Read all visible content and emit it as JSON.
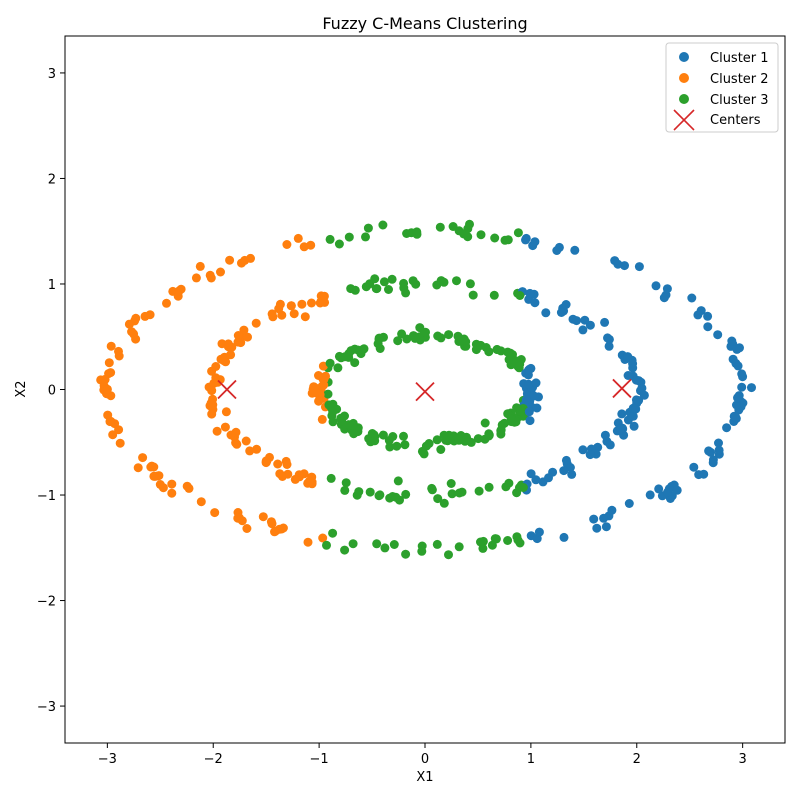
{
  "chart_data": {
    "type": "scatter",
    "title": "Fuzzy C-Means Clustering",
    "xlabel": "X1",
    "ylabel": "X2",
    "xlim": [
      -3.4,
      3.4
    ],
    "ylim": [
      -3.35,
      3.35
    ],
    "xticks": [
      -3,
      -2,
      -1,
      0,
      1,
      2,
      3
    ],
    "yticks": [
      -3,
      -2,
      -1,
      0,
      1,
      2,
      3
    ],
    "grid": false,
    "legend_position": "top-right",
    "legend": [
      "Cluster 1",
      "Cluster 2",
      "Cluster 3",
      "Centers"
    ],
    "rings": [
      {
        "a": 3.0,
        "b": 1.5,
        "label": "outer ellipse"
      },
      {
        "a": 2.0,
        "b": 1.0,
        "label": "middle ellipse"
      },
      {
        "a": 1.0,
        "b": 0.5,
        "label": "inner ellipse"
      }
    ],
    "series": [
      {
        "name": "Cluster 1",
        "color": "#1f77b4",
        "marker": "circle"
      },
      {
        "name": "Cluster 2",
        "color": "#ff7f0e",
        "marker": "circle"
      },
      {
        "name": "Cluster 3",
        "color": "#2ca02c",
        "marker": "circle"
      },
      {
        "name": "Centers",
        "color": "#d62728",
        "marker": "x",
        "points": [
          [
            -1.87,
            0.0
          ],
          [
            0.0,
            -0.02
          ],
          [
            1.86,
            0.01
          ]
        ]
      }
    ]
  }
}
